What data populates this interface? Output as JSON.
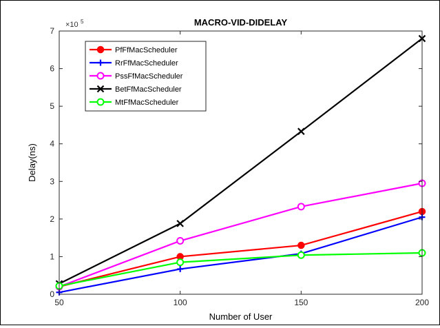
{
  "chart_data": {
    "type": "line",
    "title": "MACRO-VID-DIDELAY",
    "xlabel": "Number of User",
    "ylabel": "Delay(ns)",
    "y_multiplier_label": "×10",
    "y_multiplier_exponent": "5",
    "x": [
      50,
      100,
      150,
      200
    ],
    "x_ticks": [
      "50",
      "100",
      "150",
      "200"
    ],
    "y_ticks": [
      "0",
      "1",
      "2",
      "3",
      "4",
      "5",
      "6",
      "7"
    ],
    "xlim": [
      50,
      200
    ],
    "ylim": [
      0,
      7
    ],
    "grid": false,
    "legend_position": "top-left",
    "series": [
      {
        "name": "PfFfMacScheduler",
        "color": "#ff0000",
        "marker": "circle-filled",
        "values": [
          0.2,
          1.0,
          1.3,
          2.2
        ]
      },
      {
        "name": "RrFfMacScheduler",
        "color": "#0000ff",
        "marker": "plus",
        "values": [
          0.05,
          0.67,
          1.08,
          2.05
        ]
      },
      {
        "name": "PssFfMacScheduler",
        "color": "#ff00ff",
        "marker": "circle-open",
        "values": [
          0.2,
          1.42,
          2.33,
          2.95
        ]
      },
      {
        "name": "BetFfMacScheduler",
        "color": "#000000",
        "marker": "x",
        "values": [
          0.28,
          1.88,
          4.33,
          6.8
        ]
      },
      {
        "name": "MtFfMacScheduler",
        "color": "#00ff00",
        "marker": "circle-open",
        "values": [
          0.22,
          0.85,
          1.04,
          1.1
        ]
      }
    ]
  }
}
